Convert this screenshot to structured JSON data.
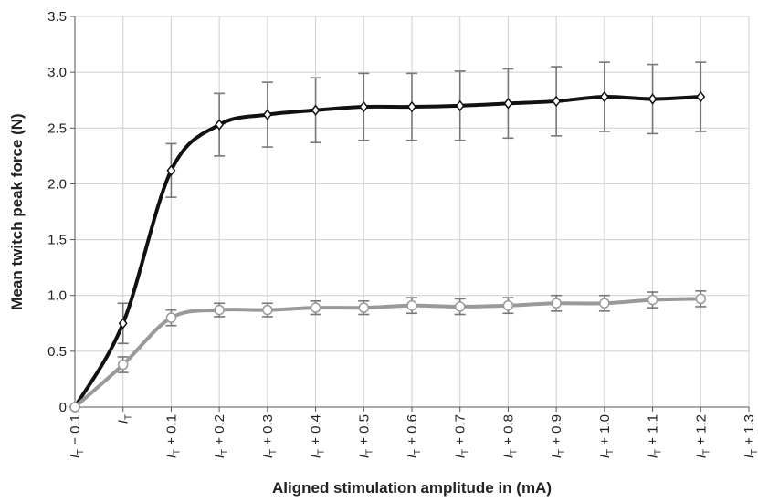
{
  "chart_data": {
    "type": "line",
    "x_label": "Aligned stimulation amplitude in (mA)",
    "y_label": "Mean twitch peak force (N)",
    "categories": [
      "IT − 0.1",
      "IT",
      "IT + 0.1",
      "IT + 0.2",
      "IT + 0.3",
      "IT + 0.4",
      "IT + 0.5",
      "IT + 0.6",
      "IT + 0.7",
      "IT + 0.8",
      "IT + 0.9",
      "IT + 1.0",
      "IT + 1.1",
      "IT + 1.2",
      "IT + 1.3"
    ],
    "series": [
      {
        "color": "#111111",
        "marker": "diamond",
        "error_color": "#777777",
        "values": [
          0,
          0.75,
          2.12,
          2.53,
          2.62,
          2.66,
          2.69,
          2.69,
          2.7,
          2.72,
          2.74,
          2.78,
          2.76,
          2.78,
          null
        ],
        "errors": [
          0,
          0.18,
          0.24,
          0.28,
          0.29,
          0.29,
          0.3,
          0.3,
          0.31,
          0.31,
          0.31,
          0.31,
          0.31,
          0.31,
          null
        ]
      },
      {
        "color": "#999999",
        "marker": "circle",
        "error_color": "#777777",
        "values": [
          0,
          0.38,
          0.8,
          0.87,
          0.87,
          0.89,
          0.89,
          0.91,
          0.9,
          0.91,
          0.93,
          0.93,
          0.96,
          0.97,
          null
        ],
        "errors": [
          0,
          0.07,
          0.07,
          0.06,
          0.06,
          0.06,
          0.06,
          0.07,
          0.07,
          0.07,
          0.07,
          0.07,
          0.07,
          0.07,
          null
        ]
      }
    ],
    "ylim": [
      0,
      3.5
    ],
    "yticks": [
      0,
      0.5,
      {
        "value": 1,
        "label": "1.0"
      },
      1.5,
      {
        "value": 2,
        "label": "2.0"
      },
      2.5,
      {
        "value": 3,
        "label": "3.0"
      },
      3.5
    ],
    "grid": true,
    "smooth": true
  }
}
